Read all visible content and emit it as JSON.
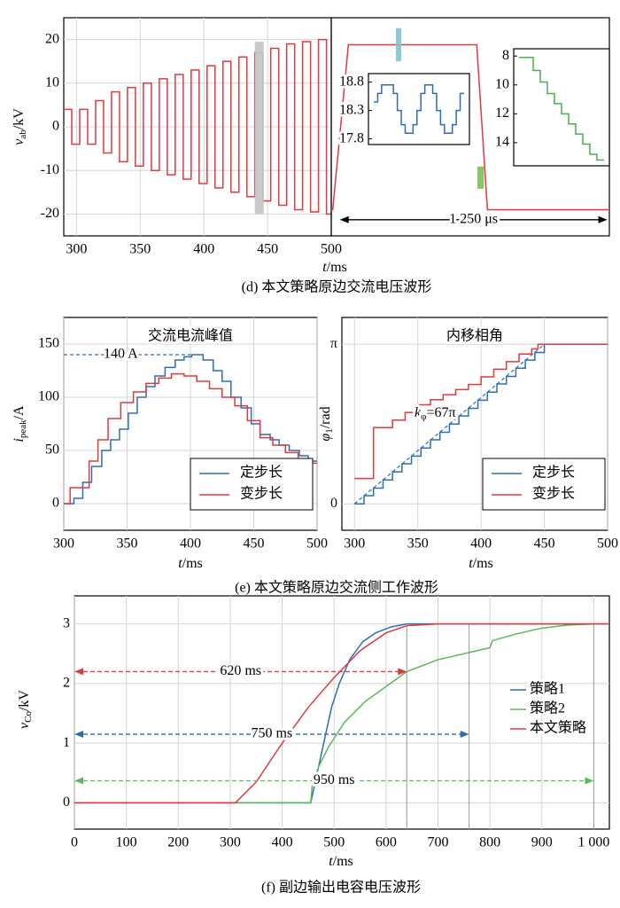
{
  "captions": [
    "(d) 本文策略原边交流电压波形",
    "(e) 本文策略原边交流侧工作波形",
    "(f) 副边输出电容电压波形"
  ],
  "chart_data": [
    {
      "type": "step",
      "xlim": [
        290,
        500
      ],
      "xticks": [
        300,
        350,
        400,
        450,
        500
      ],
      "ylim": [
        -25,
        25
      ],
      "yticks": [
        -20,
        -10,
        0,
        10,
        20
      ],
      "grid": true,
      "ylabel": {
        "text": "v",
        "sub": "ab",
        "unit": "/kV"
      },
      "xlabel": {
        "text": "t",
        "unit": "/ms"
      },
      "series": [
        {
          "color": "#e0393e",
          "x": [
            290,
            296.25,
            302.5,
            308.75,
            315,
            321.25,
            327.5,
            333.75,
            340,
            346.25,
            352.5,
            358.75,
            365,
            371.25,
            377.5,
            383.75,
            390,
            396.25,
            402.5,
            408.75,
            415,
            421.25,
            427.5,
            433.75,
            440,
            446.25,
            452.5,
            458.75,
            465,
            471.25,
            477.5,
            483.75,
            490,
            496.25
          ],
          "values": [
            4,
            -4,
            4,
            -4,
            6,
            -6,
            8,
            -8,
            9,
            -9,
            10,
            -10,
            11,
            -11,
            12,
            -12,
            13,
            -13,
            14,
            -14,
            15,
            -15,
            16,
            -16,
            17,
            -17,
            18,
            -18,
            19,
            -19,
            19.5,
            -19.5,
            20,
            -20
          ]
        }
      ],
      "highlights": [
        {
          "x": [
            440,
            447
          ],
          "y": [
            -20,
            19.5
          ],
          "color": "#c4c4c4"
        }
      ]
    },
    {
      "type": "line",
      "xlim": [
        -40,
        1260
      ],
      "ylim": [
        -25,
        25
      ],
      "series": [
        {
          "color": "#e0393e",
          "x": [
            -40,
            -33,
            40,
            640,
            690,
            1260
          ],
          "values": [
            -19,
            -19,
            18.8,
            18.8,
            -19,
            -19
          ]
        }
      ],
      "highlights": [
        {
          "x": [
            262,
            287
          ],
          "y": [
            15,
            22.6
          ],
          "color": "#7fc4cf"
        },
        {
          "x": [
            643,
            673
          ],
          "y": [
            -14.2,
            -9.1
          ],
          "color": "#7cbf5a"
        }
      ],
      "arrows": [
        {
          "x": [
            0,
            1250
          ],
          "y": -21.3,
          "label": "1 250 μs",
          "color": "#000000",
          "style": "solid"
        }
      ]
    },
    {
      "type": "step",
      "ylim": [
        17.7,
        18.95
      ],
      "yticks": [
        18.8,
        18.3,
        17.8
      ],
      "series": [
        {
          "color": "#2d6db4",
          "values": [
            18.45,
            18.6,
            18.75,
            18.75,
            18.75,
            18.6,
            18.3,
            18.05,
            17.9,
            17.9,
            18.05,
            18.3,
            18.6,
            18.75,
            18.75,
            18.6,
            18.3,
            18.05,
            17.9,
            17.9,
            18.05,
            18.3,
            18.6
          ]
        }
      ]
    },
    {
      "type": "step",
      "ylim": [
        7.5,
        15.6
      ],
      "inverted": true,
      "yticks": [
        8,
        10,
        12,
        14
      ],
      "series": [
        {
          "color": "#4caf50",
          "values": [
            8.1,
            8.1,
            9,
            9.8,
            10.6,
            11.3,
            12,
            12.7,
            13.4,
            14.1,
            14.8,
            15.2
          ]
        }
      ]
    },
    {
      "type": "step",
      "title": "交流电流峰值",
      "xlim": [
        300,
        500
      ],
      "xticks": [
        300,
        350,
        400,
        450,
        500
      ],
      "ylim": [
        -25,
        175
      ],
      "yticks": [
        0,
        50,
        100,
        150
      ],
      "grid": true,
      "legend": "lower right",
      "ylabel": {
        "text": "i",
        "sub": "peak",
        "unit": "/A"
      },
      "xlabel": {
        "text": "t",
        "unit": "/ms"
      },
      "series": [
        {
          "name": "定步长",
          "color": "#2d6db4",
          "x": [
            300,
            308,
            315,
            322,
            330,
            337,
            344,
            351,
            358,
            365,
            372,
            380,
            388,
            395,
            401,
            410,
            418,
            425,
            432,
            440,
            448,
            455,
            463,
            470,
            478,
            486,
            493
          ],
          "values": [
            0,
            5,
            20,
            35,
            50,
            60,
            70,
            85,
            100,
            110,
            120,
            128,
            135,
            138,
            140,
            135,
            125,
            115,
            100,
            90,
            75,
            65,
            60,
            55,
            50,
            45,
            40
          ]
        },
        {
          "name": "变步长",
          "color": "#e0393e",
          "x": [
            300,
            305,
            320,
            327,
            335,
            345,
            355,
            365,
            375,
            385,
            395,
            405,
            415,
            425,
            435,
            445,
            455,
            465,
            475,
            485,
            495
          ],
          "values": [
            0,
            15,
            40,
            60,
            80,
            95,
            105,
            113,
            118,
            122,
            120,
            115,
            108,
            100,
            92,
            78,
            62,
            55,
            48,
            42,
            38
          ]
        }
      ],
      "guides": [
        {
          "x": [
            300,
            400
          ],
          "y": [
            140,
            140
          ],
          "label": "140 A",
          "color": "#2d6db4"
        }
      ]
    },
    {
      "type": "step",
      "title": "内移相角",
      "xlim": [
        290,
        500
      ],
      "xticks": [
        300,
        350,
        400,
        450,
        500
      ],
      "ylim": [
        -0.52,
        3.67
      ],
      "yticks": [
        0,
        {
          "value": 3.1416,
          "label": "π"
        }
      ],
      "grid": true,
      "legend": "lower right",
      "ylabel": {
        "text": "φ",
        "sub": "1",
        "unit": "/rad"
      },
      "xlabel": {
        "text": "t",
        "unit": "/ms"
      },
      "k_annotation": {
        "text": "k",
        "sub": "φ",
        "rest": "=67π"
      },
      "series": [
        {
          "name": "定步长",
          "color": "#2d6db4",
          "x": [
            300,
            307.5,
            315,
            322.5,
            330,
            337.5,
            345,
            352.5,
            360,
            367.5,
            375,
            382.5,
            390,
            397.5,
            405,
            412.5,
            420,
            427.5,
            435,
            442.5,
            450
          ],
          "values": [
            0,
            0.16,
            0.31,
            0.47,
            0.63,
            0.79,
            0.94,
            1.1,
            1.26,
            1.41,
            1.57,
            1.73,
            1.88,
            2.04,
            2.2,
            2.36,
            2.51,
            2.67,
            2.83,
            2.98,
            3.1416
          ]
        },
        {
          "name": "变步长",
          "color": "#e0393e",
          "x": [
            300,
            315,
            330,
            340,
            350,
            360,
            370,
            380,
            390,
            400,
            410,
            420,
            430,
            440,
            445
          ],
          "values": [
            0.5,
            1.5,
            1.65,
            1.8,
            1.95,
            2.05,
            2.15,
            2.25,
            2.35,
            2.5,
            2.65,
            2.8,
            2.95,
            3.05,
            3.1416
          ]
        }
      ],
      "guides": [
        {
          "x": [
            300,
            450
          ],
          "y": [
            0,
            3.1416
          ],
          "color": "#2d6db4"
        }
      ]
    },
    {
      "type": "line",
      "xlim": [
        0,
        1030
      ],
      "xticks": [
        0,
        100,
        200,
        300,
        400,
        500,
        600,
        700,
        800,
        900,
        {
          "value": 1000,
          "label": "1 000"
        }
      ],
      "ylim": [
        -0.44,
        3.47
      ],
      "yticks": [
        0,
        1,
        2,
        3
      ],
      "grid": true,
      "legend": "right",
      "ylabel": {
        "text": "v",
        "sub": "Co",
        "unit": "/kV"
      },
      "xlabel": {
        "text": "t",
        "unit": "/ms"
      },
      "series": [
        {
          "name": "策略1",
          "color": "#2d6db4",
          "x": [
            0,
            455,
            465,
            475,
            485,
            495,
            510,
            530,
            555,
            580,
            610,
            640,
            1030
          ],
          "values": [
            0,
            0,
            0.4,
            0.8,
            1.2,
            1.6,
            2.0,
            2.4,
            2.7,
            2.85,
            2.95,
            3,
            3
          ]
        },
        {
          "name": "策略2",
          "color": "#5cb85c",
          "x": [
            0,
            455,
            458,
            470,
            490,
            520,
            560,
            600,
            640,
            700,
            760,
            800,
            805,
            850,
            900,
            950,
            1000,
            1030
          ],
          "values": [
            0,
            0,
            0.3,
            0.6,
            0.95,
            1.35,
            1.7,
            1.95,
            2.2,
            2.4,
            2.52,
            2.6,
            2.72,
            2.83,
            2.93,
            2.98,
            3,
            3
          ]
        },
        {
          "name": "本文策略",
          "color": "#e0393e",
          "x": [
            0,
            310,
            350,
            400,
            450,
            500,
            550,
            600,
            640,
            700,
            1030
          ],
          "values": [
            0,
            0,
            0.35,
            1.0,
            1.6,
            2.1,
            2.55,
            2.85,
            2.97,
            3,
            3
          ]
        }
      ],
      "arrows": [
        {
          "x": [
            0,
            640
          ],
          "y": 2.2,
          "label": "620 ms",
          "color": "#e0393e",
          "style": "dashed"
        },
        {
          "x": [
            0,
            760
          ],
          "y": 1.15,
          "label": "750 ms",
          "color": "#2d6db4",
          "style": "dashed"
        },
        {
          "x": [
            0,
            1000
          ],
          "y": 0.37,
          "label": "950 ms",
          "color": "#5cb85c",
          "style": "dashed"
        }
      ]
    }
  ]
}
